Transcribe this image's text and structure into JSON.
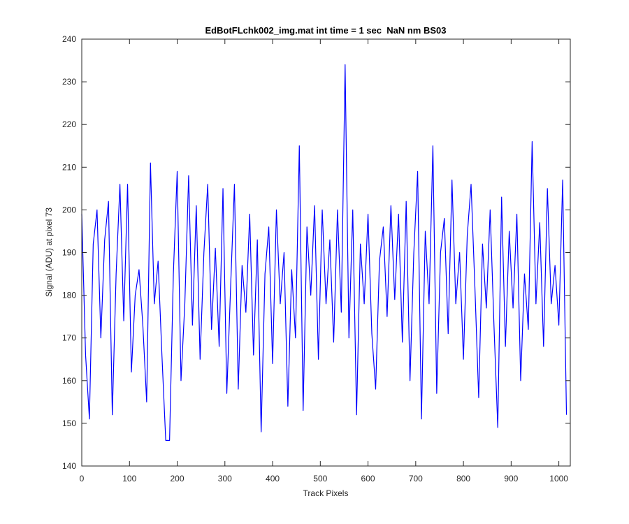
{
  "chart_data": {
    "type": "line",
    "title": "EdBotFLchk002_img.mat int time = 1 sec  NaN nm BS03",
    "x_label": "Track Pixels",
    "y_label": "Signal (ADU) at pixel 73",
    "xlim": [
      0,
      1024
    ],
    "ylim": [
      140,
      240
    ],
    "xticks": [
      0,
      100,
      200,
      300,
      400,
      500,
      600,
      700,
      800,
      900,
      1000
    ],
    "yticks": [
      140,
      150,
      160,
      170,
      180,
      190,
      200,
      210,
      220,
      230,
      240
    ],
    "x": [
      0,
      8,
      16,
      24,
      32,
      40,
      48,
      56,
      64,
      72,
      80,
      88,
      96,
      104,
      112,
      120,
      128,
      136,
      144,
      152,
      160,
      168,
      176,
      184,
      192,
      200,
      208,
      216,
      224,
      232,
      240,
      248,
      256,
      264,
      272,
      280,
      288,
      296,
      304,
      312,
      320,
      328,
      336,
      344,
      352,
      360,
      368,
      376,
      384,
      392,
      400,
      408,
      416,
      424,
      432,
      440,
      448,
      456,
      464,
      472,
      480,
      488,
      496,
      504,
      512,
      520,
      528,
      536,
      544,
      552,
      560,
      568,
      576,
      584,
      592,
      600,
      608,
      616,
      624,
      632,
      640,
      648,
      656,
      664,
      672,
      680,
      688,
      696,
      704,
      712,
      720,
      728,
      736,
      744,
      752,
      760,
      768,
      776,
      784,
      792,
      800,
      808,
      816,
      824,
      832,
      840,
      848,
      856,
      864,
      872,
      880,
      888,
      896,
      904,
      912,
      920,
      928,
      936,
      944,
      952,
      960,
      968,
      976,
      984,
      992,
      1000,
      1008,
      1016
    ],
    "series": [
      {
        "color": "#0000ff",
        "values": [
          199,
          166,
          151,
          192,
          200,
          170,
          193,
          202,
          152,
          185,
          206,
          174,
          206,
          162,
          180,
          186,
          173,
          155,
          211,
          178,
          188,
          166,
          146,
          146,
          185,
          209,
          160,
          178,
          208,
          173,
          201,
          165,
          190,
          206,
          172,
          191,
          168,
          205,
          157,
          182,
          206,
          158,
          187,
          176,
          199,
          166,
          193,
          148,
          185,
          196,
          164,
          200,
          178,
          190,
          154,
          186,
          170,
          215,
          153,
          196,
          180,
          201,
          165,
          200,
          178,
          193,
          169,
          200,
          176,
          234,
          170,
          200,
          152,
          192,
          178,
          199,
          171,
          158,
          188,
          196,
          175,
          201,
          179,
          199,
          169,
          202,
          160,
          190,
          209,
          151,
          195,
          178,
          215,
          157,
          190,
          198,
          171,
          207,
          178,
          190,
          165,
          194,
          206,
          182,
          156,
          192,
          177,
          200,
          173,
          149,
          203,
          168,
          195,
          177,
          199,
          160,
          185,
          172,
          216,
          178,
          197,
          168,
          205,
          178,
          187,
          173,
          207,
          152
        ]
      }
    ]
  }
}
